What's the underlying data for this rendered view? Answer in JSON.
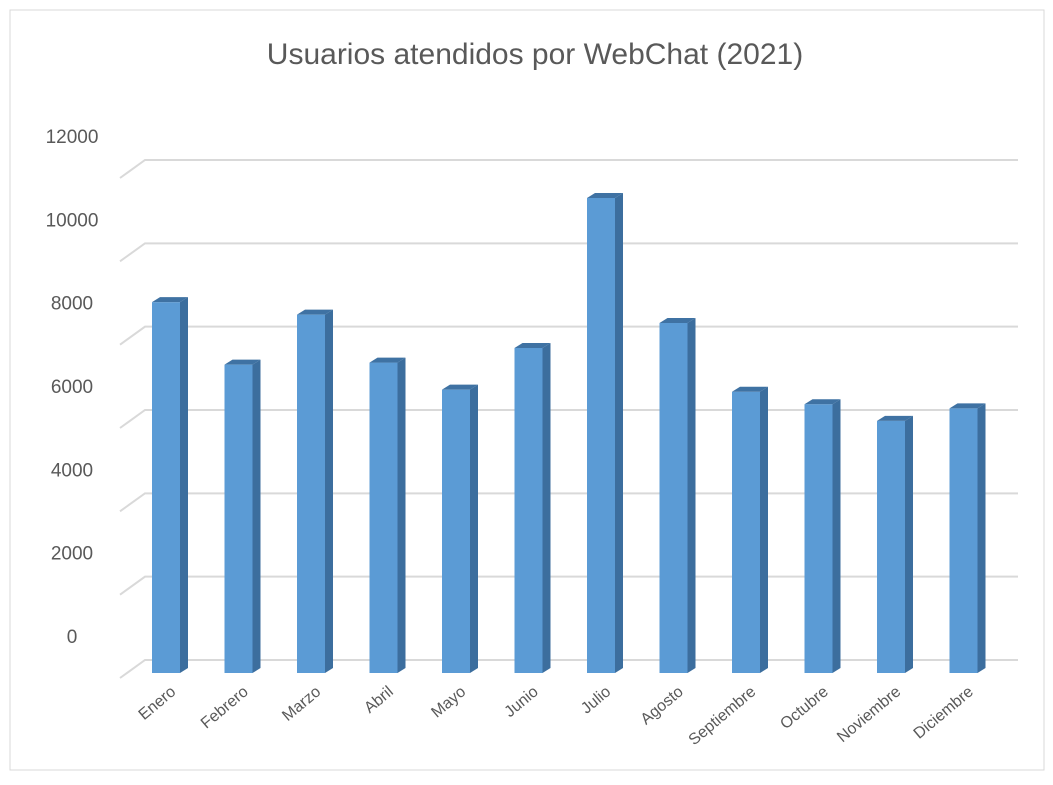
{
  "chart_data": {
    "type": "bar",
    "title": "Usuarios atendidos por WebChat (2021)",
    "categories": [
      "Enero",
      "Febrero",
      "Marzo",
      "Abril",
      "Mayo",
      "Junio",
      "Julio",
      "Agosto",
      "Septiembre",
      "Octubre",
      "Noviembre",
      "Diciembre"
    ],
    "values": [
      8900,
      7400,
      8600,
      7450,
      6800,
      7800,
      11400,
      8400,
      6750,
      6450,
      6050,
      6350
    ],
    "color": "#5b9bd5",
    "ylim": [
      0,
      12000
    ],
    "yticks": [
      0,
      2000,
      4000,
      6000,
      8000,
      10000,
      12000
    ],
    "grid": true
  }
}
